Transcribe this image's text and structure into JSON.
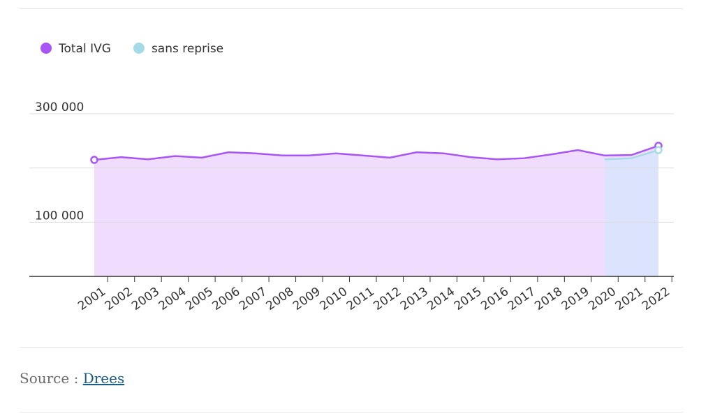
{
  "chart_data": {
    "type": "line",
    "categories": [
      "2001",
      "2002",
      "2003",
      "2004",
      "2005",
      "2006",
      "2007",
      "2008",
      "2009",
      "2010",
      "2011",
      "2012",
      "2013",
      "2014",
      "2015",
      "2016",
      "2017",
      "2018",
      "2019",
      "2020",
      "2021",
      "2022"
    ],
    "series": [
      {
        "name": "Total IVG",
        "color": "#a855f7",
        "fill": "#f0dcfd",
        "values": [
          215000,
          220000,
          216000,
          222000,
          219000,
          229000,
          227000,
          223000,
          223000,
          227000,
          223000,
          219000,
          229000,
          227000,
          220000,
          216000,
          218000,
          225000,
          233000,
          223000,
          224000,
          241000
        ]
      },
      {
        "name": "sans reprise",
        "color": "#a5dbe8",
        "fill": "#d6e6fb",
        "values": [
          null,
          null,
          null,
          null,
          null,
          null,
          null,
          null,
          null,
          null,
          null,
          null,
          null,
          null,
          null,
          null,
          null,
          null,
          null,
          216000,
          218000,
          233000
        ]
      }
    ],
    "ylim": [
      0,
      300000
    ],
    "yticks": [
      {
        "value": 100000,
        "label": "100 000"
      },
      {
        "value": 200000,
        "label": null
      },
      {
        "value": 300000,
        "label": "300 000"
      }
    ],
    "grid": true
  },
  "source": {
    "prefix": "Source : ",
    "link": "Drees"
  }
}
